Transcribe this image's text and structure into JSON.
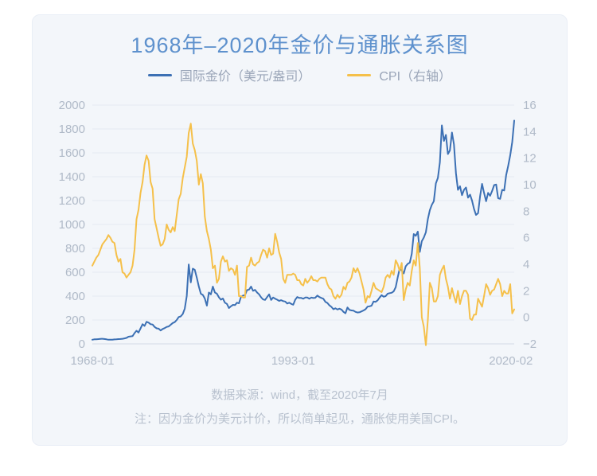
{
  "page": {
    "background": "#ffffff",
    "card_background": "#f3f6fa"
  },
  "header": {
    "title": "1968年–2020年金价与通胀关系图",
    "title_color": "#5e91cd"
  },
  "legend": {
    "items": [
      {
        "name": "gold-price",
        "label": "国际金价（美元/盎司）",
        "color": "#3c70b4",
        "icon": "line-swatch"
      },
      {
        "name": "cpi",
        "label": "CPI（右轴）",
        "color": "#f5c04a",
        "icon": "line-swatch"
      }
    ]
  },
  "footer": {
    "source": "数据来源：wind，截至2020年7月",
    "note": "注：因为金价为美元计价，所以简单起见，通胀使用美国CPI。"
  },
  "colors": {
    "grid": "#e5eaf2",
    "axis_line": "#d3dae6",
    "tick_text": "#b0bac8",
    "legend_text": "#9aa5b8",
    "footer_text": "#b9c2cf"
  },
  "chart_data": {
    "type": "line",
    "title": "1968年–2020年金价与通胀关系图",
    "grid": true,
    "legend_position": "top",
    "x_start_year": 1968.0,
    "x_step_years": 0.25,
    "x_end_year": 2020.5,
    "x_axis": {
      "tick_labels": [
        "1968-01",
        "1993-01",
        "2020-02"
      ],
      "tick_positions_year": [
        1968.0,
        1993.0,
        2020.083
      ]
    },
    "y_axis_left": {
      "label": "国际金价（美元/盎司）",
      "min": 0,
      "max": 2000,
      "ticks": [
        0,
        200,
        400,
        600,
        800,
        1000,
        1200,
        1400,
        1600,
        1800,
        2000
      ]
    },
    "y_axis_right": {
      "label": "CPI（右轴，%）",
      "min": -2,
      "max": 16,
      "ticks": [
        -2,
        0,
        2,
        4,
        6,
        8,
        10,
        12,
        14,
        16
      ]
    },
    "series": [
      {
        "name": "国际金价（美元/盎司）",
        "axis": "left",
        "color": "#3c70b4",
        "values": [
          35,
          38,
          39,
          40,
          42,
          43,
          41,
          38,
          35,
          35,
          35,
          37,
          38,
          40,
          41,
          43,
          46,
          50,
          60,
          63,
          65,
          90,
          110,
          95,
          130,
          165,
          150,
          185,
          178,
          165,
          162,
          142,
          130,
          127,
          112,
          125,
          132,
          142,
          146,
          160,
          175,
          182,
          200,
          225,
          230,
          250,
          295,
          400,
          665,
          515,
          630,
          620,
          555,
          480,
          420,
          410,
          380,
          320,
          430,
          415,
          480,
          430,
          420,
          390,
          370,
          380,
          345,
          335,
          300,
          315,
          327,
          325,
          345,
          340,
          395,
          405,
          408,
          450,
          455,
          480,
          445,
          452,
          430,
          415,
          390,
          372,
          368,
          392,
          415,
          368,
          388,
          378,
          370,
          360,
          366,
          358,
          355,
          338,
          345,
          335,
          328,
          370,
          392,
          385,
          385,
          378,
          388,
          388,
          378,
          388,
          384,
          386,
          405,
          392,
          385,
          378,
          352,
          343,
          323,
          310,
          290,
          298,
          288,
          295,
          287,
          268,
          256,
          305,
          285,
          280,
          278,
          268,
          263,
          265,
          272,
          280,
          290,
          312,
          315,
          320,
          355,
          352,
          365,
          388,
          408,
          395,
          400,
          420,
          425,
          428,
          440,
          475,
          555,
          630,
          615,
          590,
          650,
          670,
          680,
          755,
          920,
          905,
          940,
          770,
          860,
          890,
          935,
          1045,
          1120,
          1165,
          1195,
          1345,
          1390,
          1520,
          1830,
          1700,
          1750,
          1590,
          1620,
          1770,
          1670,
          1430,
          1290,
          1320,
          1245,
          1290,
          1310,
          1225,
          1250,
          1200,
          1130,
          1080,
          1095,
          1235,
          1340,
          1265,
          1195,
          1265,
          1240,
          1280,
          1330,
          1335,
          1220,
          1215,
          1290,
          1285,
          1415,
          1490,
          1580,
          1690,
          1870
        ]
      },
      {
        "name": "CPI（右轴）",
        "axis": "right",
        "color": "#f5c04a",
        "values": [
          3.9,
          4.2,
          4.5,
          4.7,
          5.1,
          5.5,
          5.7,
          5.9,
          6.2,
          6.0,
          5.7,
          5.6,
          4.7,
          4.2,
          4.4,
          3.4,
          3.3,
          3.0,
          3.2,
          3.4,
          3.9,
          5.1,
          7.4,
          8.1,
          9.4,
          10.2,
          11.5,
          12.2,
          11.8,
          10.2,
          9.7,
          7.4,
          6.7,
          6.0,
          5.4,
          5.5,
          5.9,
          7.0,
          6.6,
          6.4,
          6.8,
          6.5,
          7.7,
          8.9,
          9.3,
          10.5,
          11.3,
          12.1,
          13.9,
          14.6,
          13.1,
          12.6,
          11.8,
          10.0,
          10.8,
          10.1,
          7.6,
          6.5,
          5.9,
          5.1,
          3.7,
          3.9,
          2.6,
          2.9,
          4.2,
          4.6,
          4.2,
          4.3,
          3.5,
          3.7,
          3.6,
          3.2,
          3.9,
          1.6,
          1.6,
          1.5,
          1.5,
          3.8,
          3.9,
          4.5,
          4.0,
          3.9,
          4.1,
          4.2,
          4.7,
          5.1,
          5.0,
          4.5,
          5.2,
          4.7,
          4.8,
          6.3,
          5.7,
          4.9,
          4.4,
          2.9,
          2.6,
          3.2,
          3.2,
          3.2,
          3.3,
          3.2,
          2.8,
          2.8,
          2.5,
          2.4,
          2.9,
          2.6,
          2.8,
          3.1,
          2.8,
          2.8,
          2.7,
          2.9,
          3.0,
          3.0,
          3.0,
          2.5,
          2.2,
          2.1,
          1.6,
          1.4,
          1.7,
          1.5,
          1.7,
          2.3,
          2.1,
          2.6,
          2.7,
          3.0,
          3.7,
          3.4,
          3.7,
          3.3,
          2.7,
          2.1,
          1.1,
          1.6,
          1.5,
          2.0,
          2.6,
          2.2,
          2.1,
          2.0,
          1.9,
          2.3,
          3.0,
          3.2,
          3.0,
          3.5,
          3.2,
          4.3,
          4.0,
          3.5,
          4.1,
          1.3,
          2.1,
          2.6,
          2.4,
          3.5,
          4.3,
          3.9,
          5.6,
          3.7,
          0.0,
          -0.7,
          -2.1,
          -0.2,
          2.6,
          2.2,
          1.2,
          1.2,
          1.6,
          3.2,
          3.6,
          3.9,
          2.9,
          2.3,
          1.4,
          2.2,
          1.6,
          1.1,
          2.0,
          1.0,
          1.6,
          2.0,
          2.0,
          1.7,
          -0.1,
          -0.2,
          0.2,
          0.2,
          1.4,
          1.1,
          0.8,
          1.6,
          2.5,
          2.2,
          1.7,
          2.0,
          2.1,
          2.5,
          2.9,
          2.5,
          1.6,
          2.0,
          1.8,
          1.8,
          2.5,
          0.3,
          0.6
        ]
      }
    ]
  }
}
